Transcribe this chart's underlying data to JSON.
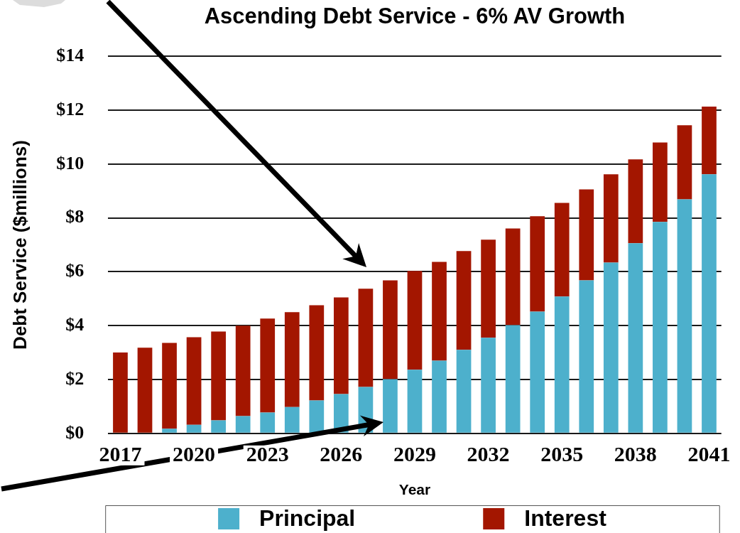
{
  "chart_data": {
    "type": "bar",
    "stacked": true,
    "title": "Ascending Debt Service - 6% AV Growth",
    "xlabel": "Year",
    "ylabel": "Debt Service ($millions)",
    "categories": [
      "2017",
      null,
      null,
      "2020",
      null,
      null,
      "2023",
      null,
      null,
      "2026",
      null,
      null,
      "2029",
      null,
      null,
      "2032",
      null,
      null,
      "2035",
      null,
      null,
      "2038",
      null,
      null,
      "2041"
    ],
    "series": [
      {
        "name": "Principal",
        "color": "#4db0cc",
        "values": [
          0,
          0,
          0.17,
          0.32,
          0.48,
          0.64,
          0.77,
          0.98,
          1.22,
          1.46,
          1.72,
          2.01,
          2.36,
          2.7,
          3.1,
          3.55,
          4.02,
          4.52,
          5.08,
          5.68,
          6.34,
          7.06,
          7.85,
          8.69,
          9.62
        ]
      },
      {
        "name": "Interest",
        "color": "#a31600",
        "values": [
          3.0,
          3.18,
          3.19,
          3.25,
          3.3,
          3.36,
          3.49,
          3.52,
          3.54,
          3.59,
          3.65,
          3.67,
          3.67,
          3.67,
          3.67,
          3.64,
          3.59,
          3.54,
          3.48,
          3.38,
          3.28,
          3.11,
          2.95,
          2.75,
          2.51
        ]
      }
    ],
    "ylim": [
      0,
      14
    ],
    "yticks": [
      {
        "value": 0,
        "label": "$0"
      },
      {
        "value": 2,
        "label": "$2"
      },
      {
        "value": 4,
        "label": "$4"
      },
      {
        "value": 6,
        "label": "$6"
      },
      {
        "value": 8,
        "label": "$8"
      },
      {
        "value": 10,
        "label": "$10"
      },
      {
        "value": 12,
        "label": "$12"
      },
      {
        "value": 14,
        "label": "$14"
      }
    ],
    "grid": "y",
    "legend": "bottom"
  }
}
